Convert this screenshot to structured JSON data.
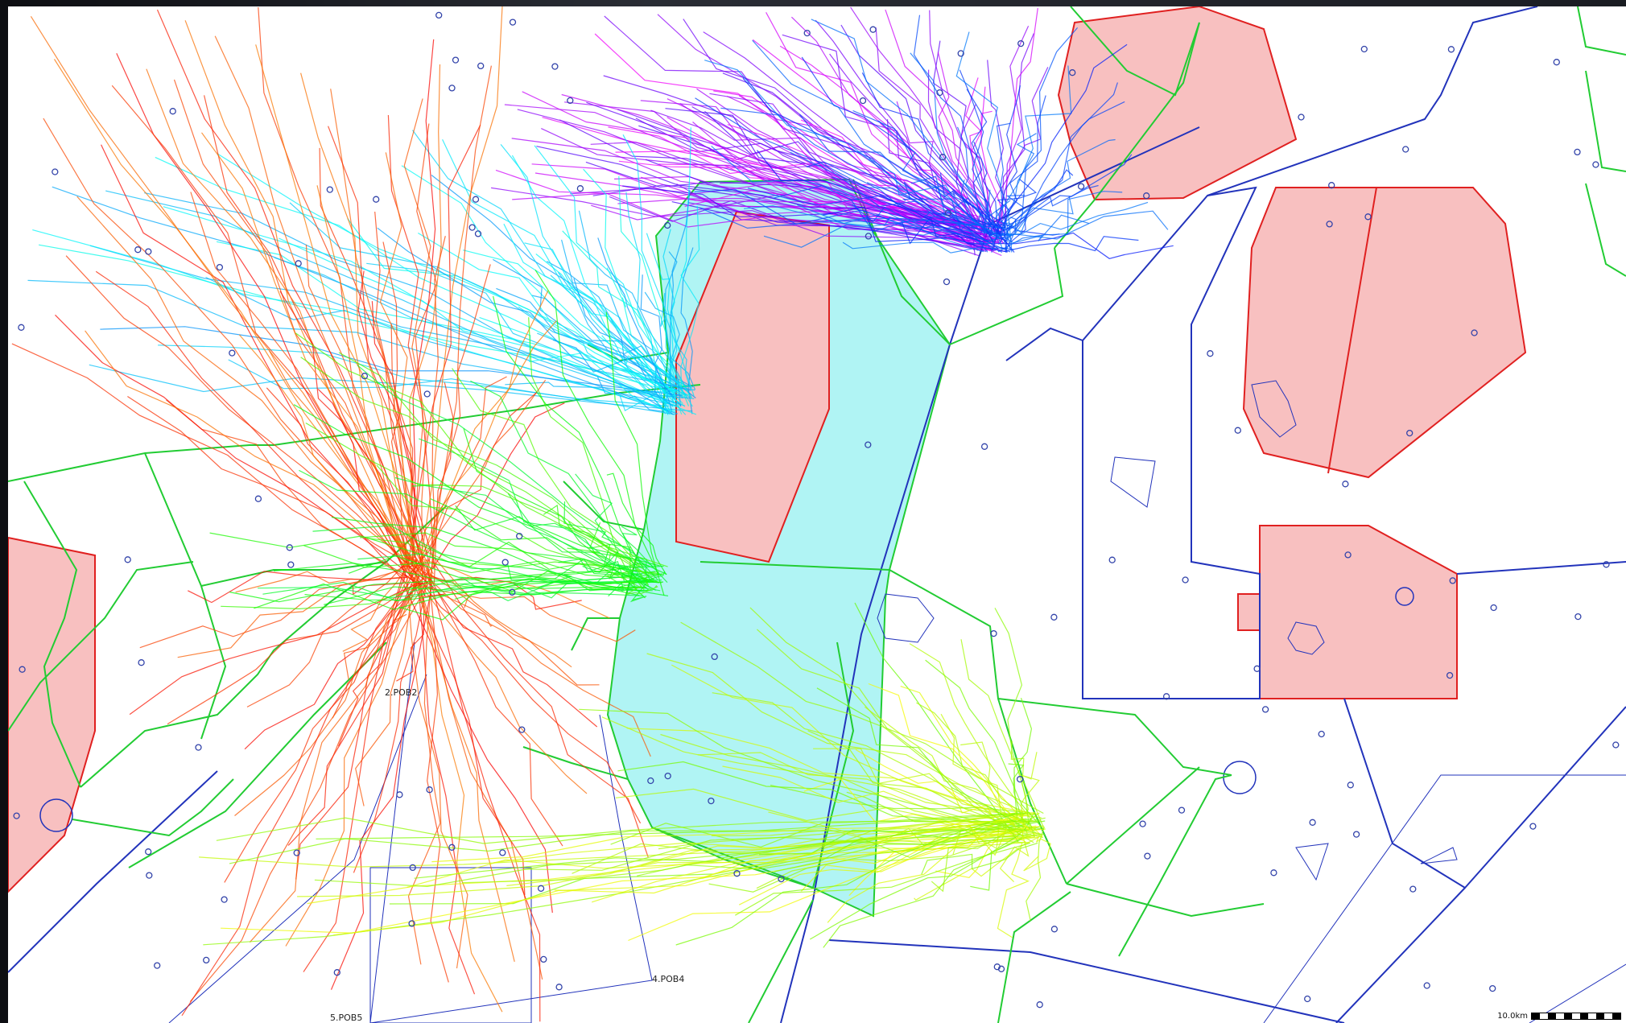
{
  "map": {
    "waypoints": [
      {
        "id": "wp2",
        "label": "2.POB2"
      },
      {
        "id": "wp4",
        "label": "4.POB4"
      },
      {
        "id": "wp5",
        "label": "5.POB5"
      }
    ],
    "scale_label": "10.0km",
    "colors": {
      "restricted_fill": "#f8c0c0",
      "restricted_stroke": "#e02020",
      "corridor_fill": "#b0f4f4",
      "boundary_blue": "#2233bb",
      "boundary_green": "#22cc33",
      "marker_blue": "#3344aa"
    },
    "track_clusters": [
      {
        "name": "violet-blue",
        "hue_from": 255,
        "hue_to": 300
      },
      {
        "name": "blue",
        "hue_from": 210,
        "hue_to": 235
      },
      {
        "name": "cyan",
        "hue_from": 175,
        "hue_to": 205
      },
      {
        "name": "red-orange",
        "hue_from": 0,
        "hue_to": 30
      },
      {
        "name": "green",
        "hue_from": 100,
        "hue_to": 135
      },
      {
        "name": "yellow-green",
        "hue_from": 60,
        "hue_to": 95
      }
    ]
  }
}
